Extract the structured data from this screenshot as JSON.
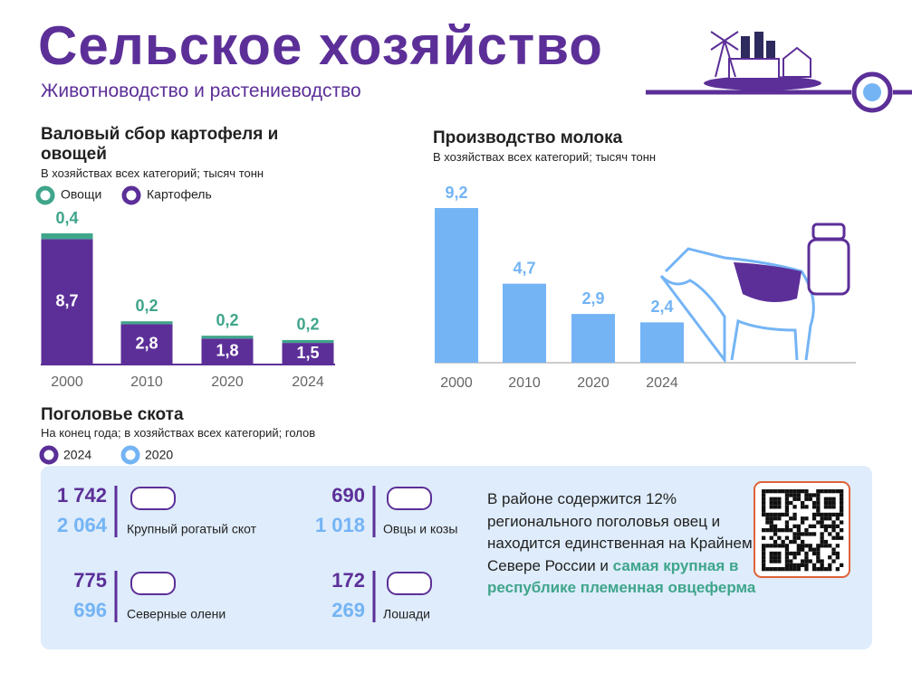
{
  "header": {
    "title": "Сельское хозяйство",
    "subtitle": "Животноводство и растениеводство"
  },
  "chart_data": [
    {
      "type": "stacked_bar",
      "title": "Валовый сбор картофеля и овощей",
      "subtitle": "В хозяйствах всех категорий; тысяч тонн",
      "categories": [
        "2000",
        "2010",
        "2020",
        "2024"
      ],
      "series": [
        {
          "name": "Картофель",
          "color": "#5c2f98",
          "values": [
            8.7,
            2.8,
            1.8,
            1.5
          ],
          "value_labels": [
            "8,7",
            "2,8",
            "1,8",
            "1,5"
          ]
        },
        {
          "name": "Овощи",
          "color": "#3fa58b",
          "values": [
            0.4,
            0.2,
            0.2,
            0.2
          ],
          "value_labels": [
            "0,4",
            "0,2",
            "0,2",
            "0,2"
          ]
        }
      ]
    },
    {
      "type": "bar",
      "title": "Производство молока",
      "subtitle": "В хозяйствах всех категорий; тысяч тонн",
      "categories": [
        "2000",
        "2010",
        "2020",
        "2024"
      ],
      "color": "#74b4f5",
      "values": [
        9.2,
        4.7,
        2.9,
        2.4
      ],
      "value_labels": [
        "9,2",
        "4,7",
        "2,9",
        "2,4"
      ]
    }
  ],
  "livestock": {
    "title": "Поголовье скота",
    "subtitle": "На конец года; в хозяйствах всех категорий; голов",
    "legend": [
      "2024",
      "2020"
    ],
    "items": [
      {
        "label": "Крупный рогатый скот",
        "values": [
          "1 742",
          "2 064"
        ]
      },
      {
        "label": "Овцы и козы",
        "values": [
          "690",
          "1 018"
        ]
      },
      {
        "label": "Северные олени",
        "values": [
          "775",
          "696"
        ]
      },
      {
        "label": "Лошади",
        "values": [
          "172",
          "269"
        ]
      }
    ]
  },
  "note": {
    "text": "В районе содержится 12% регионального поголовья овец и находится единственная на Крайнем Севере России и",
    "highlight": "самая крупная в республике племенная овцеферма"
  }
}
